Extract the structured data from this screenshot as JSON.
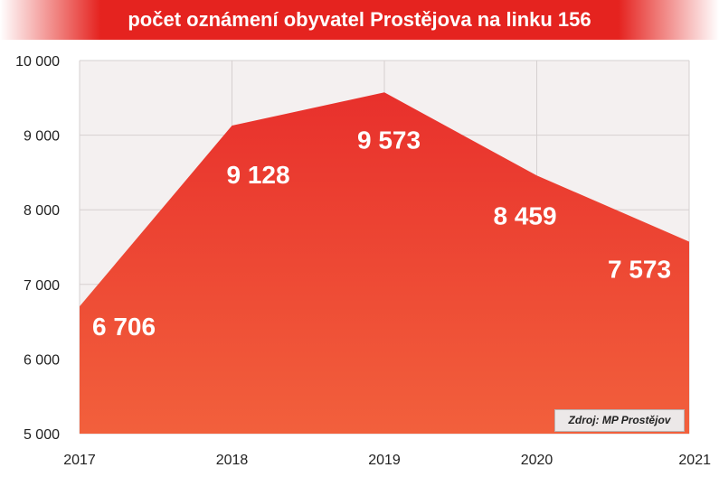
{
  "chart_data": {
    "type": "area",
    "title": "počet oznámení obyvatel Prostějova na linku 156",
    "x": [
      "2017",
      "2018",
      "2019",
      "2020",
      "2021"
    ],
    "series": [
      {
        "values": [
          6706,
          9128,
          9573,
          8459,
          7573
        ]
      }
    ],
    "data_labels": [
      "6 706",
      "9 128",
      "9 573",
      "8 459",
      "7 573"
    ],
    "y_ticks": [
      5000,
      6000,
      7000,
      8000,
      9000,
      10000
    ],
    "y_tick_labels": [
      "5 000",
      "6 000",
      "7 000",
      "8 000",
      "9 000",
      "10 000"
    ],
    "ylim": [
      5000,
      10000
    ],
    "grid": true,
    "annotation": "Zdroj: MP Prostějov",
    "colors": {
      "fill_top": "#e8302c",
      "fill_bottom": "#f2603c",
      "title_bar": "#e5231f",
      "plot_background": "#f4f0f0"
    }
  }
}
